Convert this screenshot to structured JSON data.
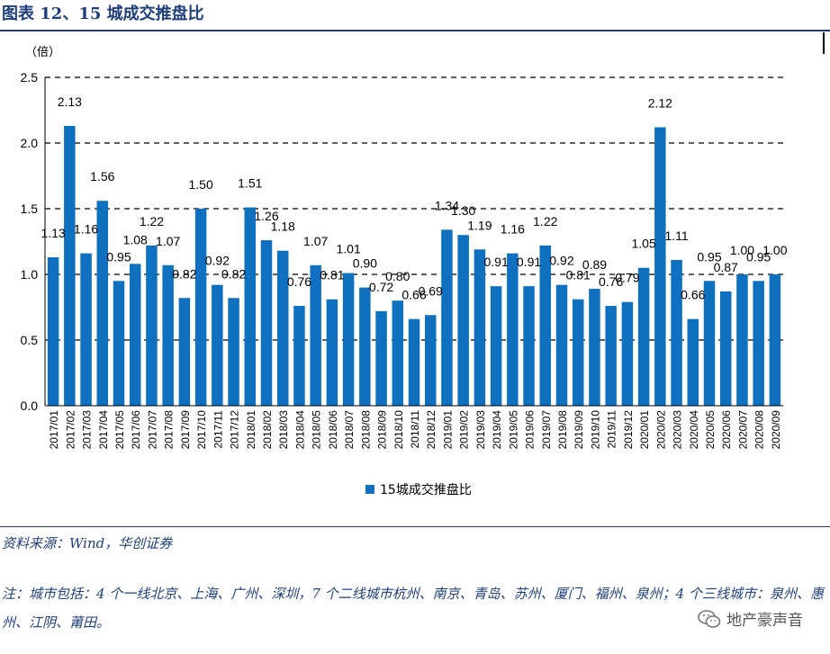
{
  "header": {
    "title": "图表 12、15 城成交推盘比"
  },
  "footer": {
    "source": "资料来源：Wind，华创证券",
    "note": "注：城市包括：4 个一线北京、上海、广州、深圳，7 个二线城市杭州、南京、青岛、苏州、厦门、福州、泉州；4 个三线城市：泉州、惠州、江阴、莆田。"
  },
  "watermark": {
    "text": "地产豪声音"
  },
  "chart_data": {
    "type": "bar",
    "title": "",
    "ylabel": "（倍）",
    "xlabel": "",
    "ylim": [
      0,
      2.5
    ],
    "yticks": [
      0.0,
      0.5,
      1.0,
      1.5,
      2.0,
      2.5
    ],
    "ytick_labels": [
      "0.0",
      "0.5",
      "1.0",
      "1.5",
      "2.0",
      "2.5"
    ],
    "grid": "dashed horizontal",
    "legend_position": "bottom-center",
    "categories": [
      "2017/01",
      "2017/02",
      "2017/03",
      "2017/04",
      "2017/05",
      "2017/06",
      "2017/07",
      "2017/08",
      "2017/09",
      "2017/10",
      "2017/11",
      "2017/12",
      "2018/01",
      "2018/02",
      "2018/03",
      "2018/04",
      "2018/05",
      "2018/06",
      "2018/07",
      "2018/08",
      "2018/09",
      "2018/10",
      "2018/11",
      "2018/12",
      "2019/01",
      "2019/02",
      "2019/03",
      "2019/04",
      "2019/05",
      "2019/06",
      "2019/07",
      "2019/08",
      "2019/09",
      "2019/10",
      "2019/11",
      "2019/12",
      "2020/01",
      "2020/02",
      "2020/03",
      "2020/04",
      "2020/05",
      "2020/06",
      "2020/07",
      "2020/08",
      "2020/09"
    ],
    "series": [
      {
        "name": "15城成交推盘比",
        "color": "#0f70bf",
        "values": [
          1.13,
          2.13,
          1.16,
          1.56,
          0.95,
          1.08,
          1.22,
          1.07,
          0.82,
          1.5,
          0.92,
          0.82,
          1.51,
          1.26,
          1.18,
          0.76,
          1.07,
          0.81,
          1.01,
          0.9,
          0.72,
          0.8,
          0.66,
          0.69,
          1.34,
          1.3,
          1.19,
          0.91,
          1.16,
          0.91,
          1.22,
          0.92,
          0.81,
          0.89,
          0.76,
          0.79,
          1.05,
          2.12,
          1.11,
          0.66,
          0.95,
          0.87,
          1.0,
          0.95,
          1.0
        ],
        "labels": [
          "1.13",
          "2.13",
          "1.16",
          "1.56",
          "0.95",
          "1.08",
          "1.22",
          "1.07",
          "0.82",
          "1.50",
          "0.92",
          "0.82",
          "1.51",
          "1.26",
          "1.18",
          "0.76",
          "1.07",
          "0.81",
          "1.01",
          "0.90",
          "0.72",
          "0.80",
          "0.66",
          "0.69",
          "1.34",
          "1.30",
          "1.19",
          "0.91",
          "1.16",
          "0.91",
          "1.22",
          "0.92",
          "0.81",
          "0.89",
          "0.76",
          "0.79",
          "1.05",
          "2.12",
          "1.11",
          "0.66",
          "0.95",
          "0.87",
          "1.00",
          "0.95",
          "1.00"
        ]
      }
    ]
  }
}
